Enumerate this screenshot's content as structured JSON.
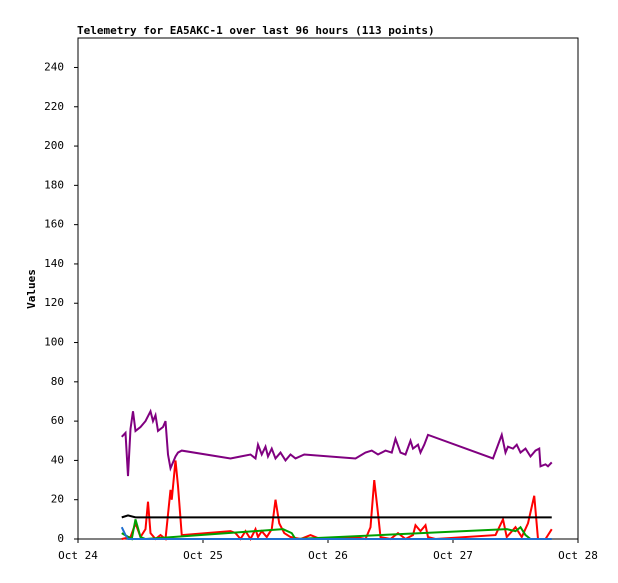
{
  "chart_data": {
    "type": "line",
    "title": "Telemetry for EA5AKC-1 over last 96 hours (113 points)",
    "y_label": "Values",
    "xlim": [
      0,
      4
    ],
    "xticks": [
      {
        "value": 0,
        "label": "Oct 24"
      },
      {
        "value": 1,
        "label": "Oct 25"
      },
      {
        "value": 2,
        "label": "Oct 26"
      },
      {
        "value": 3,
        "label": "Oct 27"
      },
      {
        "value": 4,
        "label": "Oct 28"
      }
    ],
    "ylim": [
      0,
      255
    ],
    "yticks": [
      0,
      20,
      40,
      60,
      80,
      100,
      120,
      140,
      160,
      180,
      200,
      220,
      240
    ],
    "series": [
      {
        "color": "#800080",
        "x": [
          0.35,
          0.38,
          0.4,
          0.42,
          0.44,
          0.46,
          0.5,
          0.54,
          0.58,
          0.6,
          0.62,
          0.64,
          0.68,
          0.7,
          0.72,
          0.74,
          0.78,
          0.8,
          0.83,
          1.22,
          1.3,
          1.38,
          1.42,
          1.44,
          1.47,
          1.5,
          1.52,
          1.55,
          1.58,
          1.62,
          1.66,
          1.7,
          1.74,
          1.81,
          2.22,
          2.3,
          2.35,
          2.4,
          2.46,
          2.51,
          2.54,
          2.58,
          2.62,
          2.66,
          2.68,
          2.72,
          2.74,
          2.77,
          2.8,
          3.32,
          3.39,
          3.42,
          3.44,
          3.48,
          3.51,
          3.54,
          3.58,
          3.62,
          3.66,
          3.69,
          3.7,
          3.74,
          3.76,
          3.79
        ],
        "values": [
          52,
          54,
          32,
          56,
          65,
          55,
          57,
          60,
          65,
          60,
          63,
          55,
          57,
          60,
          43,
          36,
          42,
          44,
          45,
          41,
          42,
          43,
          41,
          48,
          43,
          47,
          42,
          46,
          41,
          44,
          40,
          43,
          41,
          43,
          41,
          44,
          45,
          43,
          45,
          44,
          51,
          44,
          43,
          50,
          46,
          48,
          44,
          48,
          53,
          41,
          53,
          44,
          47,
          46,
          48,
          44,
          46,
          42,
          45,
          46,
          37,
          38,
          37,
          39
        ]
      },
      {
        "color": "#ff0000",
        "x": [
          0.35,
          0.42,
          0.46,
          0.5,
          0.54,
          0.56,
          0.58,
          0.62,
          0.66,
          0.7,
          0.74,
          0.75,
          0.78,
          0.8,
          0.83,
          1.22,
          1.26,
          1.3,
          1.34,
          1.38,
          1.42,
          1.44,
          1.47,
          1.51,
          1.55,
          1.58,
          1.61,
          1.65,
          1.7,
          1.78,
          1.86,
          1.94,
          2.22,
          2.3,
          2.34,
          2.37,
          2.4,
          2.42,
          2.5,
          2.56,
          2.62,
          2.68,
          2.7,
          2.74,
          2.78,
          2.8,
          2.86,
          3.34,
          3.4,
          3.43,
          3.5,
          3.55,
          3.6,
          3.65,
          3.68,
          3.74,
          3.79
        ],
        "values": [
          0,
          1,
          8,
          1,
          5,
          19,
          3,
          0,
          2,
          0,
          25,
          20,
          40,
          27,
          2,
          4,
          3,
          0,
          4,
          0,
          5,
          1,
          4,
          1,
          5,
          20,
          8,
          3,
          1,
          0,
          2,
          0,
          1,
          0,
          6,
          30,
          13,
          1,
          0,
          3,
          0,
          2,
          7,
          4,
          7,
          1,
          0,
          2,
          10,
          1,
          6,
          1,
          8,
          22,
          0,
          0,
          5
        ]
      },
      {
        "color": "#000000",
        "x": [
          0.35,
          0.4,
          0.46,
          3.79
        ],
        "values": [
          11,
          12,
          11,
          11
        ]
      },
      {
        "color": "#00a000",
        "x": [
          0.35,
          0.43,
          0.46,
          0.5,
          0.54,
          1.64,
          1.71,
          1.74,
          3.43,
          3.5,
          3.54,
          3.58,
          3.62
        ],
        "values": [
          3,
          0,
          10,
          1,
          0,
          5,
          3,
          0,
          5,
          4,
          6,
          2,
          0
        ]
      },
      {
        "color": "#1f6fd0",
        "x": [
          0.35,
          0.38,
          0.4,
          3.79
        ],
        "values": [
          6,
          2,
          0,
          0
        ]
      }
    ]
  }
}
